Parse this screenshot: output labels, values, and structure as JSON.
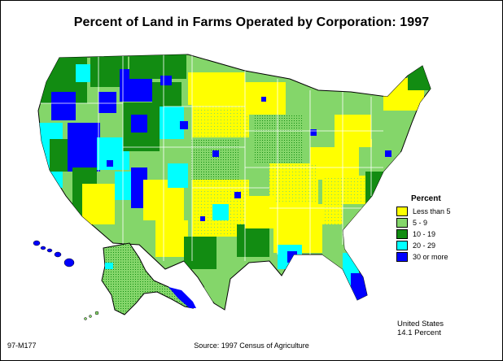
{
  "title": "Percent of Land in Farms Operated by Corporation:  1997",
  "legend": {
    "title": "Percent",
    "items": [
      {
        "label": "Less than 5",
        "color": "#ffff00"
      },
      {
        "label": "5 - 9",
        "color": "#84d66a"
      },
      {
        "label": "10 - 19",
        "color": "#128c12"
      },
      {
        "label": "20 - 29",
        "color": "#00ffff"
      },
      {
        "label": "30 or more",
        "color": "#0000ff"
      }
    ]
  },
  "us_total": {
    "line1": "United States",
    "line2": "14.1 Percent"
  },
  "code": "97-M177",
  "source": "Source:  1997 Census of Agriculture",
  "map": {
    "type": "county choropleth",
    "region": "United States",
    "outline_color": "#000000",
    "state_line_color": "#ffffff"
  }
}
